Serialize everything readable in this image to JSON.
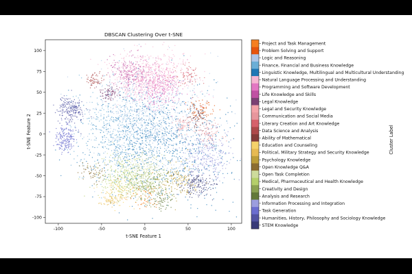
{
  "chart_data": {
    "type": "scatter",
    "title": "DBSCAN Clustering Over t-SNE",
    "xlabel": "t-SNE Feature 1",
    "ylabel": "t-SNE Feature 2",
    "colorbar_label": "Cluster Label",
    "xlim": [
      -115,
      112
    ],
    "ylim": [
      -107,
      113
    ],
    "xticks": [
      -100,
      -50,
      0,
      50,
      100
    ],
    "yticks": [
      -100,
      -75,
      -50,
      -25,
      0,
      25,
      50,
      75,
      100
    ],
    "grid": false,
    "legend": "colorbar-right",
    "categories": [
      {
        "name": "Project and Task Management",
        "color": "#f57f20"
      },
      {
        "name": "Problem Solving and Support",
        "color": "#e6550d"
      },
      {
        "name": "Logic and Reasoning",
        "color": "#aec7e8"
      },
      {
        "name": "Finance, Financial and Business Knowledge",
        "color": "#6baed6"
      },
      {
        "name": "Linguistic Knowledge, Multilingual and Multicultural Understanding",
        "color": "#1f77b4"
      },
      {
        "name": "Natural Language Processing and Understanding",
        "color": "#f7b6d2"
      },
      {
        "name": "Programming and Software Development",
        "color": "#e377c2"
      },
      {
        "name": "Life Knowledge and Skills",
        "color": "#c051a3"
      },
      {
        "name": "Legal Knowledge",
        "color": "#7b4173"
      },
      {
        "name": "Legal and Security Knowledge",
        "color": "#f4a3a8"
      },
      {
        "name": "Communication and Social Media",
        "color": "#e7969c"
      },
      {
        "name": "Literary Creation and Art Knowledge",
        "color": "#d6616b"
      },
      {
        "name": "Data Science and Analysis",
        "color": "#ad494a"
      },
      {
        "name": "Ability of Mathematical",
        "color": "#843c39"
      },
      {
        "name": "Education and Counseling",
        "color": "#f5d26a"
      },
      {
        "name": "Political, Military Strategy and Security Knowledge",
        "color": "#e7ba52"
      },
      {
        "name": "Psychology Knowledge",
        "color": "#bd9e39"
      },
      {
        "name": "Open Knowledge Q&A",
        "color": "#8c6d31"
      },
      {
        "name": "Open Task Completion",
        "color": "#cedb9c"
      },
      {
        "name": "Medical, Pharmaceutical and Health Knowledge",
        "color": "#b5cf6b"
      },
      {
        "name": "Creativity and Design",
        "color": "#8ca252"
      },
      {
        "name": "Analysis and Research",
        "color": "#637939"
      },
      {
        "name": "Information Processing and Integration",
        "color": "#9c9ede"
      },
      {
        "name": "Task Generation",
        "color": "#6b6ecf"
      },
      {
        "name": "Humanities, History, Philosophy and Sociology Knowledge",
        "color": "#5254a3"
      },
      {
        "name": "STEM Knowledge",
        "color": "#393b79"
      }
    ],
    "regions": [
      {
        "category": 2,
        "cx": 5,
        "cy": 15,
        "sx": 32,
        "sy": 28,
        "count": 900
      },
      {
        "category": 4,
        "cx": 20,
        "cy": -10,
        "sx": 40,
        "sy": 35,
        "count": 900
      },
      {
        "category": 3,
        "cx": -30,
        "cy": 0,
        "sx": 25,
        "sy": 30,
        "count": 500
      },
      {
        "category": 5,
        "cx": 5,
        "cy": 70,
        "sx": 22,
        "sy": 14,
        "count": 650
      },
      {
        "category": 6,
        "cx": 15,
        "cy": 55,
        "sx": 15,
        "sy": 12,
        "count": 300
      },
      {
        "category": 7,
        "cx": -15,
        "cy": 75,
        "sx": 12,
        "sy": 10,
        "count": 180
      },
      {
        "category": 8,
        "cx": -42,
        "cy": 50,
        "sx": 6,
        "sy": 5,
        "count": 80
      },
      {
        "category": 12,
        "cx": -58,
        "cy": 65,
        "sx": 5,
        "sy": 4,
        "count": 60
      },
      {
        "category": 13,
        "cx": 60,
        "cy": 20,
        "sx": 5,
        "sy": 8,
        "count": 70
      },
      {
        "category": 10,
        "cx": 75,
        "cy": 0,
        "sx": 8,
        "sy": 8,
        "count": 90
      },
      {
        "category": 19,
        "cx": -20,
        "cy": -55,
        "sx": 18,
        "sy": 12,
        "count": 280
      },
      {
        "category": 20,
        "cx": 5,
        "cy": -60,
        "sx": 14,
        "sy": 10,
        "count": 220
      },
      {
        "category": 18,
        "cx": -10,
        "cy": -40,
        "sx": 15,
        "sy": 10,
        "count": 200
      },
      {
        "category": 16,
        "cx": 40,
        "cy": -55,
        "sx": 12,
        "sy": 10,
        "count": 150
      },
      {
        "category": 22,
        "cx": 70,
        "cy": -30,
        "sx": 14,
        "sy": 14,
        "count": 280
      },
      {
        "category": 23,
        "cx": -92,
        "cy": -5,
        "sx": 6,
        "sy": 8,
        "count": 180
      },
      {
        "category": 24,
        "cx": -85,
        "cy": 30,
        "sx": 8,
        "sy": 8,
        "count": 200
      },
      {
        "category": 25,
        "cx": 60,
        "cy": -60,
        "sx": 10,
        "sy": 8,
        "count": 150
      },
      {
        "category": 14,
        "cx": -30,
        "cy": -70,
        "sx": 10,
        "sy": 8,
        "count": 100
      },
      {
        "category": 0,
        "cx": 0,
        "cy": -75,
        "sx": 10,
        "sy": 8,
        "count": 60
      },
      {
        "category": 1,
        "cx": 65,
        "cy": 30,
        "sx": 8,
        "sy": 6,
        "count": 60
      },
      {
        "category": 11,
        "cx": 50,
        "cy": 70,
        "sx": 8,
        "sy": 6,
        "count": 70
      },
      {
        "category": 9,
        "cx": 45,
        "cy": 10,
        "sx": 6,
        "sy": 6,
        "count": 60
      },
      {
        "category": 17,
        "cx": -60,
        "cy": -45,
        "sx": 8,
        "sy": 6,
        "count": 60
      },
      {
        "category": 21,
        "cx": 20,
        "cy": -80,
        "sx": 8,
        "sy": 6,
        "count": 60
      },
      {
        "category": 15,
        "cx": -40,
        "cy": -80,
        "sx": 6,
        "sy": 5,
        "count": 50
      }
    ]
  }
}
